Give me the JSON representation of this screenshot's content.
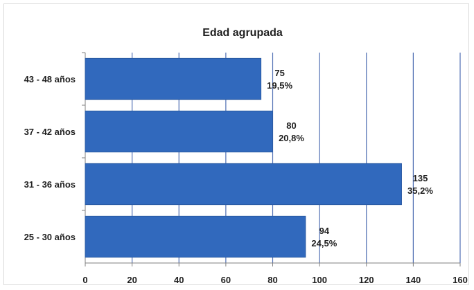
{
  "chart_data": {
    "type": "bar",
    "orientation": "horizontal",
    "title": "Edad agrupada",
    "categories": [
      "43 - 48 años",
      "37 - 42 años",
      "31 - 36 años",
      "25 - 30 años"
    ],
    "values": [
      75,
      80,
      135,
      94
    ],
    "percentages": [
      "19,5%",
      "20,8%",
      "35,2%",
      "24,5%"
    ],
    "x_ticks": [
      0,
      20,
      40,
      60,
      80,
      100,
      120,
      140,
      160
    ],
    "xlim": [
      0,
      160
    ],
    "grid": "vertical",
    "legend": "none",
    "colors": {
      "bar": "#3169bd",
      "bar_edge": "#2a5aa3",
      "grid": "#4f6fb3",
      "axis": "#7f7f7f",
      "text": "#1f1f1f"
    }
  }
}
